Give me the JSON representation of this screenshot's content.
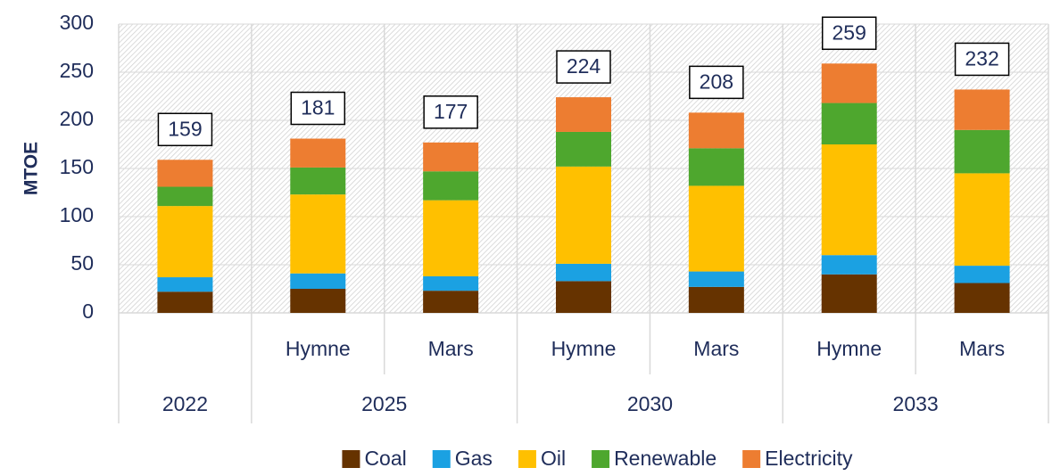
{
  "chart_data": {
    "type": "stacked_bar",
    "ylabel": "MTOE",
    "categories": [
      null,
      "Hymne",
      "Mars",
      "Hymne",
      "Mars",
      "Hymne",
      "Mars"
    ],
    "groups": [
      {
        "label": "2022",
        "count": 1
      },
      {
        "label": "2025",
        "count": 2
      },
      {
        "label": "2030",
        "count": 2
      },
      {
        "label": "2033",
        "count": 2
      }
    ],
    "series": [
      {
        "name": "Coal",
        "color": "#663300",
        "values": [
          22,
          25,
          23,
          33,
          27,
          40,
          31
        ]
      },
      {
        "name": "Gas",
        "color": "#1ba1e2",
        "values": [
          15,
          16,
          15,
          18,
          16,
          20,
          18
        ]
      },
      {
        "name": "Oil",
        "color": "#ffc000",
        "values": [
          74,
          82,
          79,
          101,
          89,
          115,
          96
        ]
      },
      {
        "name": "Renewable",
        "color": "#4ea72e",
        "values": [
          20,
          28,
          30,
          36,
          39,
          43,
          45
        ]
      },
      {
        "name": "Electricity",
        "color": "#ed7d31",
        "values": [
          28,
          30,
          30,
          36,
          37,
          41,
          42
        ]
      }
    ],
    "totals": [
      159,
      181,
      177,
      224,
      208,
      259,
      232
    ],
    "ylim": [
      0,
      300
    ],
    "yticks": [
      0,
      50,
      100,
      150,
      200,
      250,
      300
    ],
    "grid": true,
    "legend": "bottom"
  }
}
